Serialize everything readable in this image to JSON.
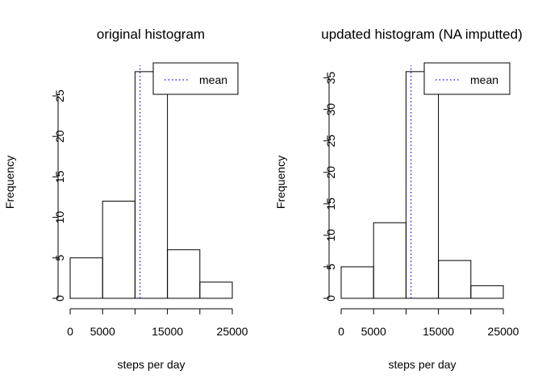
{
  "chart_data": [
    {
      "type": "bar",
      "title": "original histogram",
      "xlabel": "steps per day",
      "ylabel": "Frequency",
      "bins": [
        [
          0,
          5000
        ],
        [
          5000,
          10000
        ],
        [
          10000,
          15000
        ],
        [
          15000,
          20000
        ],
        [
          20000,
          25000
        ]
      ],
      "values": [
        5,
        12,
        28,
        6,
        2
      ],
      "xlim": [
        0,
        25000
      ],
      "ylim": [
        0,
        28
      ],
      "x_ticks": [
        0,
        5000,
        10000,
        15000,
        20000,
        25000
      ],
      "x_tick_labels": [
        "0",
        "5000",
        "",
        "15000",
        "",
        "25000"
      ],
      "y_ticks": [
        0,
        5,
        10,
        15,
        20,
        25
      ],
      "y_tick_labels": [
        "0",
        "5",
        "10",
        "15",
        "20",
        "25"
      ],
      "mean_line": {
        "x": 10766,
        "color": "#0000ff",
        "style": "dotted"
      },
      "legend": {
        "position": "top-right",
        "label": "mean"
      }
    },
    {
      "type": "bar",
      "title": "updated histogram (NA imputted)",
      "xlabel": "steps per day",
      "ylabel": "Frequency",
      "bins": [
        [
          0,
          5000
        ],
        [
          5000,
          10000
        ],
        [
          10000,
          15000
        ],
        [
          15000,
          20000
        ],
        [
          20000,
          25000
        ]
      ],
      "values": [
        5,
        12,
        36,
        6,
        2
      ],
      "xlim": [
        0,
        25000
      ],
      "ylim": [
        0,
        36
      ],
      "x_ticks": [
        0,
        5000,
        10000,
        15000,
        20000,
        25000
      ],
      "x_tick_labels": [
        "0",
        "5000",
        "",
        "15000",
        "",
        "25000"
      ],
      "y_ticks": [
        0,
        5,
        10,
        15,
        20,
        25,
        30,
        35
      ],
      "y_tick_labels": [
        "0",
        "5",
        "10",
        "15",
        "20",
        "25",
        "30",
        "35"
      ],
      "mean_line": {
        "x": 10766,
        "color": "#0000ff",
        "style": "dotted"
      },
      "legend": {
        "position": "top-right",
        "label": "mean"
      }
    }
  ]
}
